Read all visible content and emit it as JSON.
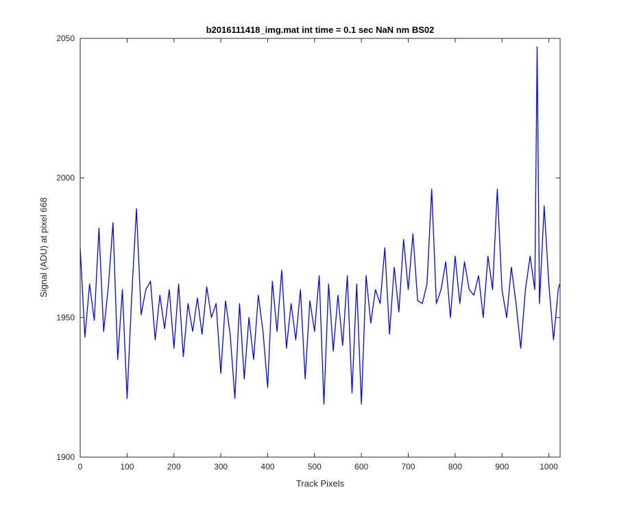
{
  "chart_data": {
    "type": "line",
    "title": "b2016111418_img.mat int time = 0.1 sec  NaN nm BS02",
    "xlabel": "Track Pixels",
    "ylabel": "Signal (ADU) at pixel 668",
    "xlim": [
      0,
      1024
    ],
    "ylim": [
      1900,
      2050
    ],
    "xticks": [
      0,
      100,
      200,
      300,
      400,
      500,
      600,
      700,
      800,
      900,
      1000
    ],
    "yticks": [
      1900,
      1950,
      2000,
      2050
    ],
    "grid": false,
    "legend": "none",
    "series": [
      {
        "color": "#0000ff",
        "x": [
          0,
          10,
          20,
          30,
          40,
          50,
          60,
          70,
          80,
          90,
          100,
          110,
          120,
          130,
          140,
          150,
          160,
          170,
          180,
          190,
          200,
          210,
          220,
          230,
          240,
          250,
          260,
          270,
          280,
          290,
          300,
          310,
          320,
          330,
          340,
          350,
          360,
          370,
          380,
          390,
          400,
          410,
          420,
          430,
          440,
          450,
          460,
          470,
          480,
          490,
          500,
          510,
          520,
          530,
          540,
          550,
          560,
          570,
          580,
          590,
          600,
          610,
          620,
          630,
          640,
          650,
          660,
          670,
          680,
          690,
          700,
          710,
          720,
          730,
          740,
          750,
          760,
          770,
          780,
          790,
          800,
          810,
          820,
          830,
          840,
          850,
          860,
          870,
          880,
          890,
          900,
          910,
          920,
          930,
          940,
          950,
          960,
          970,
          975,
          980,
          990,
          1000,
          1010,
          1020,
          1023
        ],
        "y": [
          1975,
          1943,
          1962,
          1949,
          1982,
          1945,
          1961,
          1984,
          1935,
          1960,
          1921,
          1958,
          1989,
          1951,
          1960,
          1963,
          1942,
          1958,
          1946,
          1960,
          1939,
          1962,
          1936,
          1955,
          1945,
          1957,
          1944,
          1961,
          1950,
          1955,
          1930,
          1956,
          1944,
          1921,
          1955,
          1928,
          1950,
          1935,
          1958,
          1945,
          1925,
          1963,
          1945,
          1967,
          1939,
          1955,
          1942,
          1960,
          1928,
          1956,
          1945,
          1965,
          1919,
          1962,
          1938,
          1958,
          1940,
          1965,
          1923,
          1962,
          1919,
          1965,
          1948,
          1960,
          1955,
          1975,
          1944,
          1968,
          1952,
          1978,
          1960,
          1980,
          1956,
          1955,
          1962,
          1996,
          1955,
          1960,
          1970,
          1950,
          1972,
          1955,
          1970,
          1960,
          1958,
          1965,
          1950,
          1972,
          1960,
          1996,
          1960,
          1950,
          1968,
          1955,
          1939,
          1960,
          1972,
          1960,
          2047,
          1955,
          1990,
          1962,
          1942,
          1960,
          1962
        ]
      }
    ]
  }
}
